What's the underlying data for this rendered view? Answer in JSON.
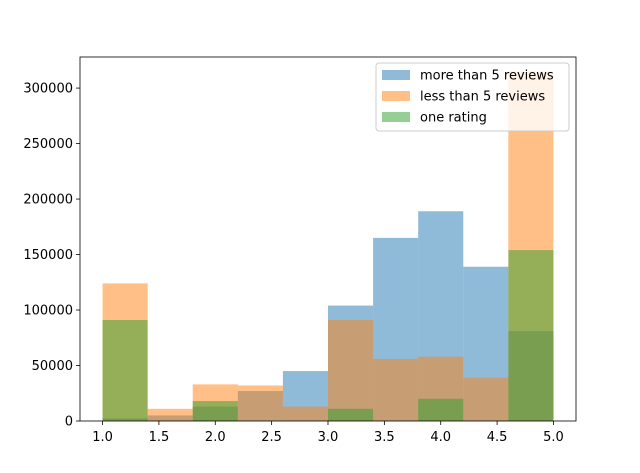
{
  "chart_data": {
    "type": "bar",
    "subtype": "overlaid-histogram",
    "title": "",
    "xlabel": "",
    "ylabel": "",
    "xlim": [
      0.8,
      5.2
    ],
    "ylim": [
      0,
      328000
    ],
    "grid": false,
    "legend_position": "top-right",
    "bin_edges": [
      1.0,
      1.4,
      1.8,
      2.2,
      2.6,
      3.0,
      3.4,
      3.8,
      4.2,
      4.6,
      5.0
    ],
    "series": [
      {
        "name": "more than 5 reviews",
        "color": "#1f77b4",
        "alpha": 0.5,
        "values": [
          2500,
          5000,
          13000,
          27000,
          45000,
          104000,
          165000,
          189000,
          139000,
          81000
        ]
      },
      {
        "name": "less than 5 reviews",
        "color": "#ff7f0e",
        "alpha": 0.5,
        "values": [
          124000,
          11000,
          33000,
          32000,
          13000,
          91000,
          56000,
          58000,
          39000,
          315000
        ]
      },
      {
        "name": "one rating",
        "color": "#2ca02c",
        "alpha": 0.5,
        "values": [
          91000,
          0,
          18000,
          0,
          0,
          11000,
          0,
          20000,
          0,
          154000
        ]
      }
    ],
    "x_ticks": [
      1.0,
      1.5,
      2.0,
      2.5,
      3.0,
      3.5,
      4.0,
      4.5,
      5.0
    ],
    "x_tick_labels": [
      "1.0",
      "1.5",
      "2.0",
      "2.5",
      "3.0",
      "3.5",
      "4.0",
      "4.5",
      "5.0"
    ],
    "y_ticks": [
      0,
      50000,
      100000,
      150000,
      200000,
      250000,
      300000
    ],
    "y_tick_labels": [
      "0",
      "50000",
      "100000",
      "150000",
      "200000",
      "250000",
      "300000"
    ]
  }
}
